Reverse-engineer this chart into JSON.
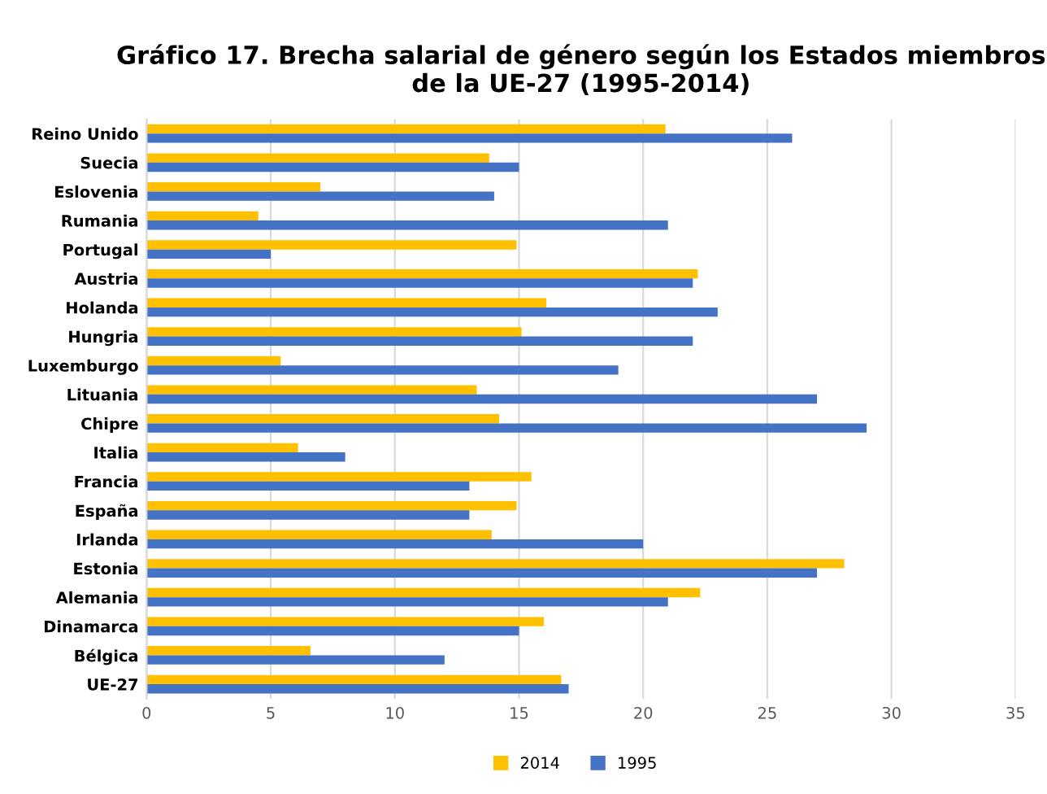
{
  "chart_data": {
    "type": "bar",
    "orientation": "horizontal",
    "title": "Gráfico 17. Brecha salarial de género según los Estados miembros\nde la UE-27 (1995-2014)",
    "categories": [
      "Reino Unido",
      "Suecia",
      "Eslovenia",
      "Rumania",
      "Portugal",
      "Austria",
      "Holanda",
      "Hungria",
      "Luxemburgo",
      "Lituania",
      "Chipre",
      "Italia",
      "Francia",
      "España",
      "Irlanda",
      "Estonia",
      "Alemania",
      "Dinamarca",
      "Bélgica",
      "UE-27"
    ],
    "series": [
      {
        "name": "2014",
        "color": "#ffc000",
        "values": [
          20.9,
          13.8,
          7.0,
          4.5,
          14.9,
          22.2,
          16.1,
          15.1,
          5.4,
          13.3,
          14.2,
          6.1,
          15.5,
          14.9,
          13.9,
          28.1,
          22.3,
          16.0,
          6.6,
          16.7
        ]
      },
      {
        "name": "1995",
        "color": "#4472c4",
        "values": [
          26.0,
          15.0,
          14.0,
          21.0,
          5.0,
          22.0,
          23.0,
          22.0,
          19.0,
          27.0,
          29.0,
          8.0,
          13.0,
          13.0,
          20.0,
          27.0,
          21.0,
          15.0,
          12.0,
          17.0
        ]
      }
    ],
    "xlim": [
      0,
      35
    ],
    "xticks": [
      0,
      5,
      10,
      15,
      20,
      25,
      30,
      35
    ],
    "grid": "x",
    "legend": "bottom"
  }
}
